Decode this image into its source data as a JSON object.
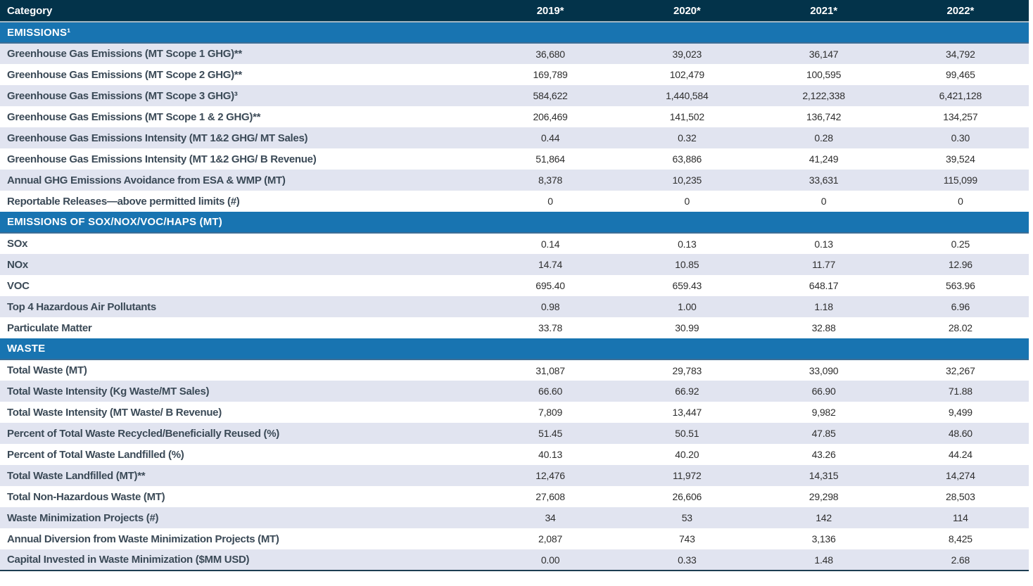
{
  "colors": {
    "header_bg": "#03334a",
    "section_bg": "#1874b1",
    "row_shaded_bg": "#e1e4f0",
    "row_plain_bg": "#ffffff",
    "label_text": "#3b4a57",
    "value_text": "#2e2e2e",
    "header_divider": "#a3b6c2",
    "section_divider": "#3d6e96",
    "bottom_border": "#1d3d52"
  },
  "chart_data": {
    "type": "table",
    "columns": [
      "Category",
      "2019*",
      "2020*",
      "2021*",
      "2022*"
    ],
    "layout": {
      "striping": "alternating rows per section",
      "section_header_style": "full-width blue bar"
    },
    "sections": [
      {
        "title": "EMISSIONS¹",
        "stripe_start": "shaded",
        "rows": [
          {
            "label": "Greenhouse Gas Emissions (MT Scope 1 GHG)**",
            "values": [
              "36,680",
              "39,023",
              "36,147",
              "34,792"
            ]
          },
          {
            "label": "Greenhouse Gas Emissions (MT Scope 2 GHG)**",
            "values": [
              "169,789",
              "102,479",
              "100,595",
              "99,465"
            ]
          },
          {
            "label": "Greenhouse Gas Emissions (MT Scope 3 GHG)³",
            "values": [
              "584,622",
              "1,440,584",
              "2,122,338",
              "6,421,128"
            ]
          },
          {
            "label": "Greenhouse Gas Emissions (MT Scope 1 & 2 GHG)**",
            "values": [
              "206,469",
              "141,502",
              "136,742",
              "134,257"
            ]
          },
          {
            "label": "Greenhouse Gas Emissions Intensity (MT 1&2 GHG/ MT Sales)",
            "values": [
              "0.44",
              "0.32",
              "0.28",
              "0.30"
            ]
          },
          {
            "label": "Greenhouse Gas Emissions Intensity (MT 1&2 GHG/ B Revenue)",
            "values": [
              "51,864",
              "63,886",
              "41,249",
              "39,524"
            ]
          },
          {
            "label": "Annual GHG Emissions Avoidance from ESA & WMP (MT)",
            "values": [
              "8,378",
              "10,235",
              "33,631",
              "115,099"
            ]
          },
          {
            "label": "Reportable Releases—above permitted limits (#)",
            "values": [
              "0",
              "0",
              "0",
              "0"
            ]
          }
        ]
      },
      {
        "title": "EMISSIONS OF SOX/NOX/VOC/HAPS (MT)",
        "stripe_start": "plain",
        "rows": [
          {
            "label": "SOx",
            "values": [
              "0.14",
              "0.13",
              "0.13",
              "0.25"
            ]
          },
          {
            "label": "NOx",
            "values": [
              "14.74",
              "10.85",
              "11.77",
              "12.96"
            ]
          },
          {
            "label": "VOC",
            "values": [
              "695.40",
              "659.43",
              "648.17",
              "563.96"
            ]
          },
          {
            "label": "Top 4 Hazardous Air Pollutants",
            "values": [
              "0.98",
              "1.00",
              "1.18",
              "6.96"
            ]
          },
          {
            "label": "Particulate Matter",
            "values": [
              "33.78",
              "30.99",
              "32.88",
              "28.02"
            ]
          }
        ]
      },
      {
        "title": "WASTE",
        "stripe_start": "plain",
        "rows": [
          {
            "label": "Total Waste (MT)",
            "values": [
              "31,087",
              "29,783",
              "33,090",
              "32,267"
            ]
          },
          {
            "label": "Total Waste Intensity (Kg Waste/MT Sales)",
            "values": [
              "66.60",
              "66.92",
              "66.90",
              "71.88"
            ]
          },
          {
            "label": "Total Waste Intensity (MT Waste/ B Revenue)",
            "values": [
              "7,809",
              "13,447",
              "9,982",
              "9,499"
            ]
          },
          {
            "label": "Percent of Total Waste Recycled/Beneficially Reused (%)",
            "values": [
              "51.45",
              "50.51",
              "47.85",
              "48.60"
            ]
          },
          {
            "label": "Percent of Total Waste Landfilled (%)",
            "values": [
              "40.13",
              "40.20",
              "43.26",
              "44.24"
            ]
          },
          {
            "label": "Total Waste Landfilled (MT)**",
            "values": [
              "12,476",
              "11,972",
              "14,315",
              "14,274"
            ]
          },
          {
            "label": "Total Non-Hazardous Waste (MT)",
            "values": [
              "27,608",
              "26,606",
              "29,298",
              "28,503"
            ]
          },
          {
            "label": "Waste Minimization Projects (#)",
            "values": [
              "34",
              "53",
              "142",
              "114"
            ]
          },
          {
            "label": "Annual Diversion from Waste Minimization Projects (MT)",
            "values": [
              "2,087",
              "743",
              "3,136",
              "8,425"
            ]
          },
          {
            "label": "Capital Invested in Waste Minimization ($MM USD)",
            "values": [
              "0.00",
              "0.33",
              "1.48",
              "2.68"
            ]
          }
        ]
      }
    ]
  }
}
